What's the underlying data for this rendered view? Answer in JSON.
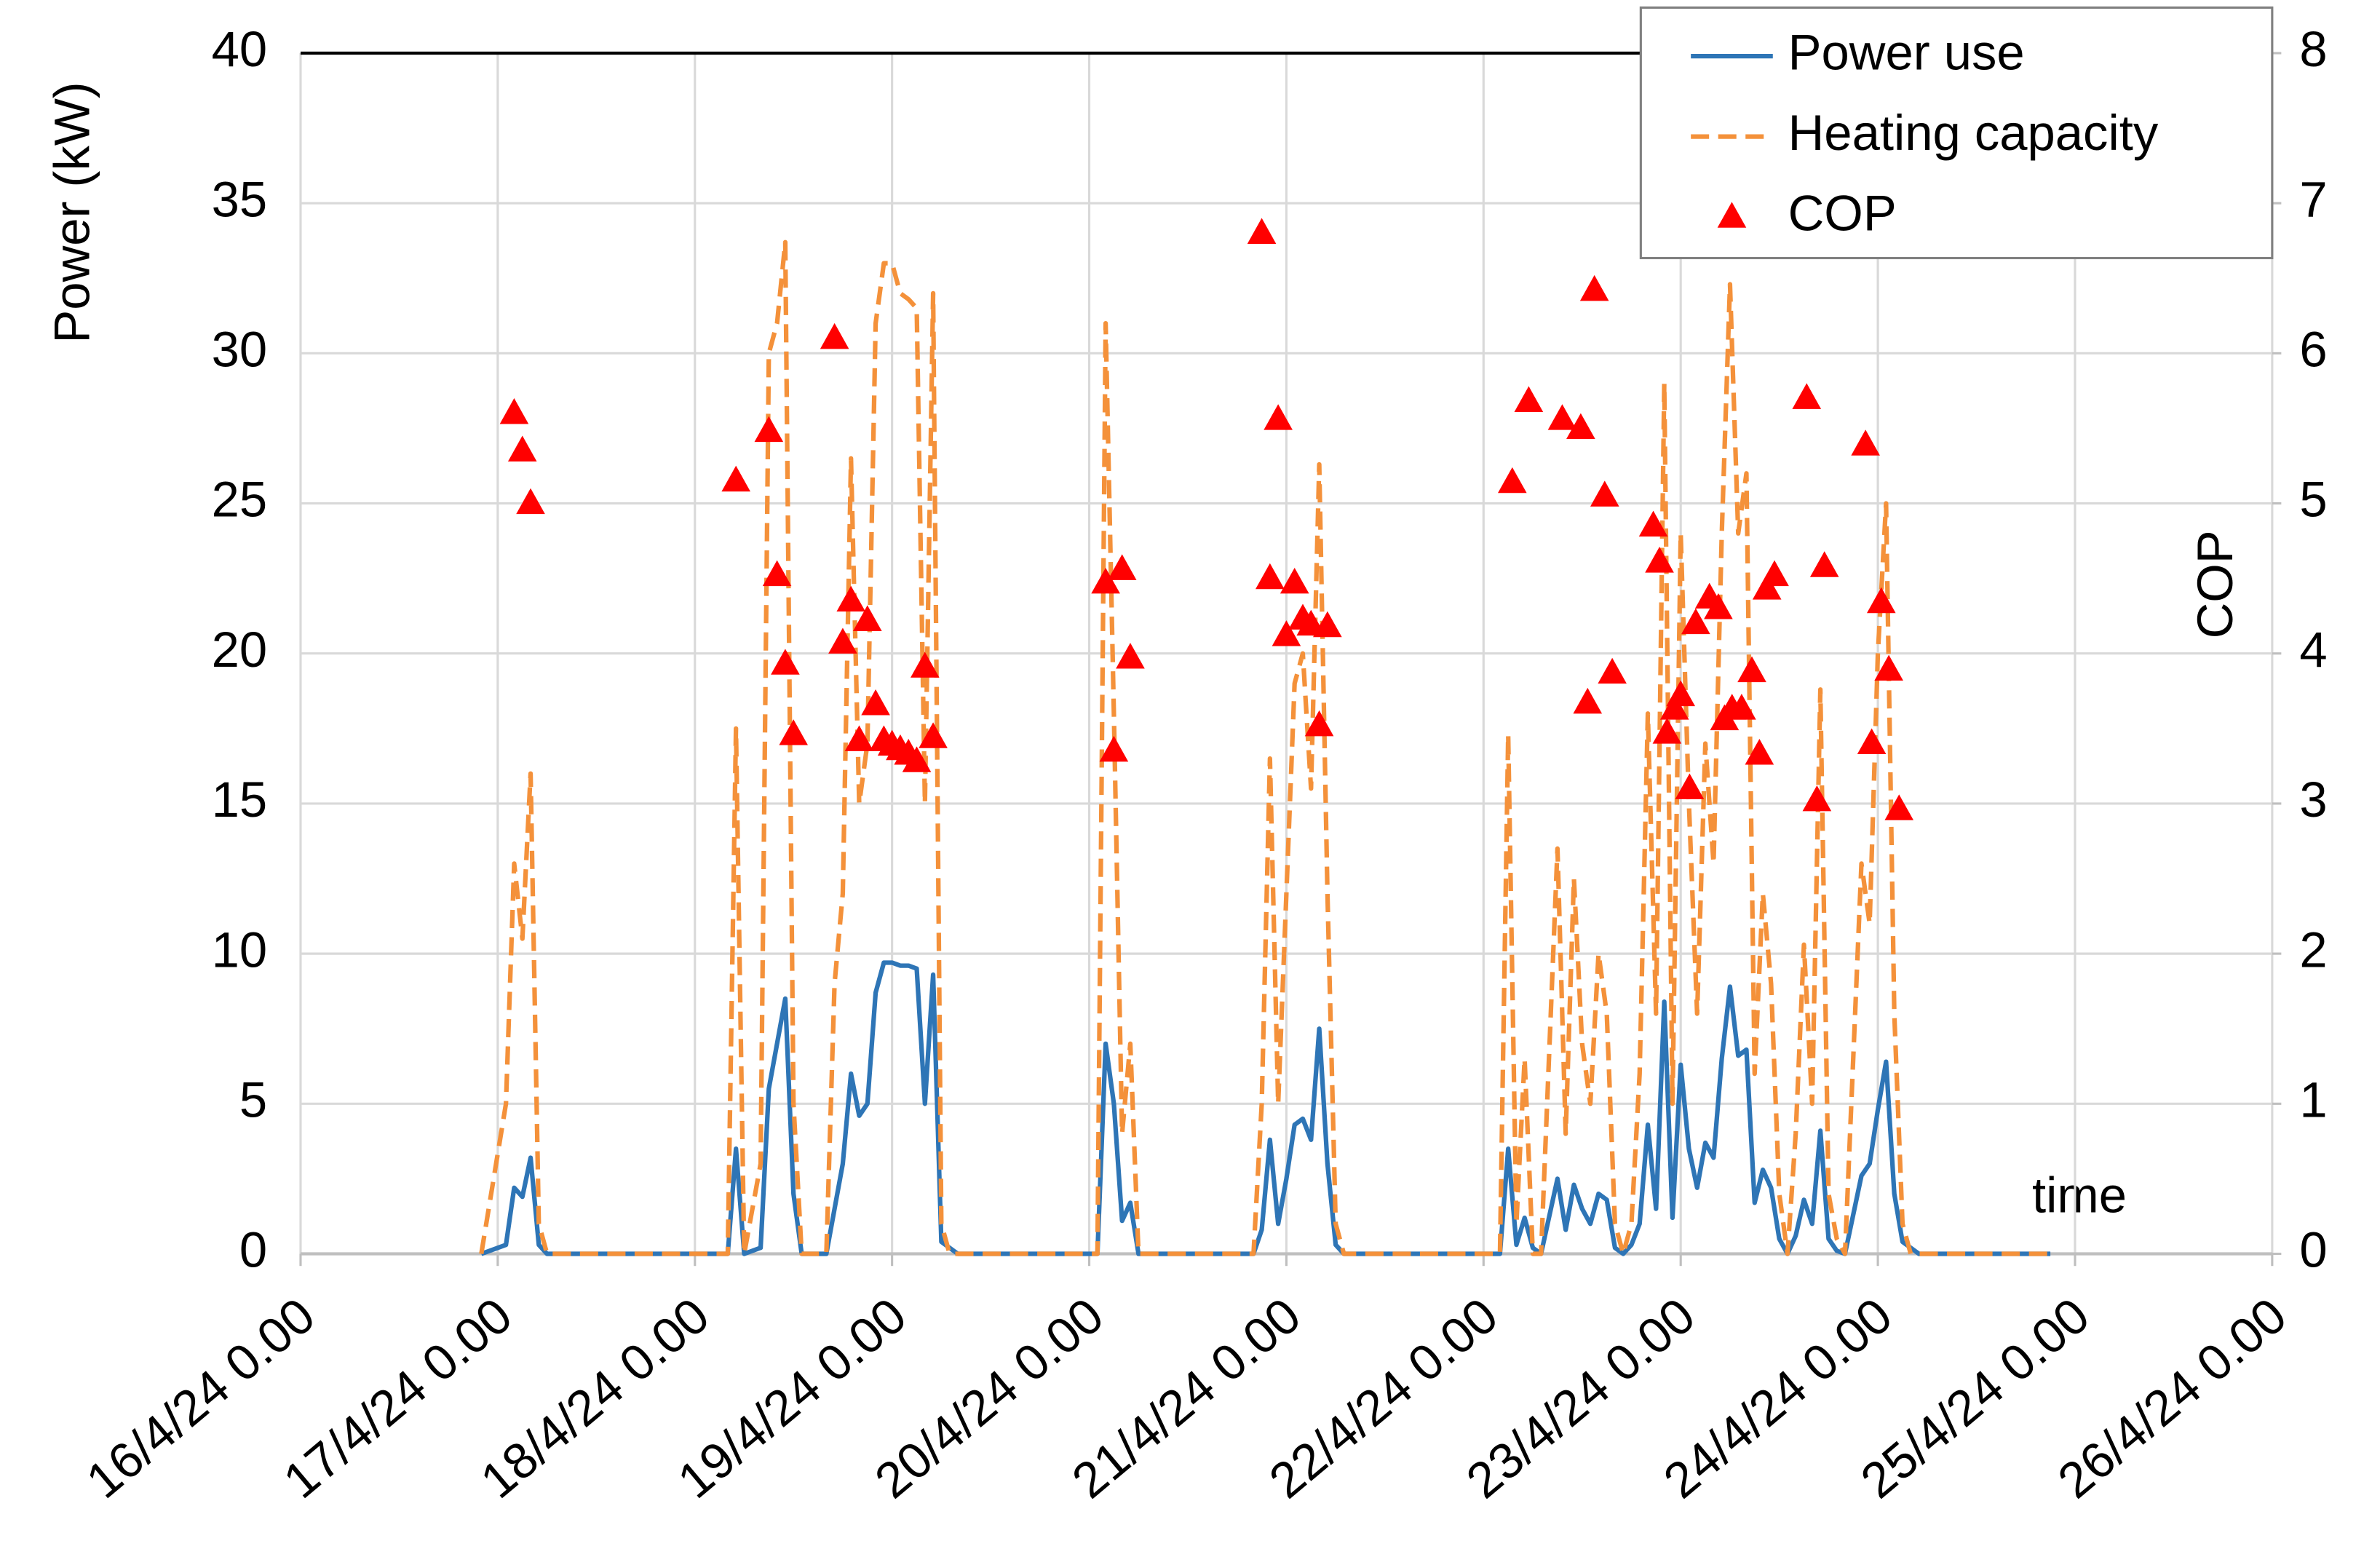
{
  "chart_data": {
    "type": "line",
    "y_label": "Power (kW)",
    "y2_label": "COP",
    "annotation": "time",
    "xlim": [
      "16/4/24 0.00",
      "26/4/24 0.00"
    ],
    "xticks": [
      "16/4/24 0.00",
      "17/4/24 0.00",
      "18/4/24 0.00",
      "19/4/24 0.00",
      "20/4/24 0.00",
      "21/4/24 0.00",
      "22/4/24 0.00",
      "23/4/24 0.00",
      "24/4/24 0.00",
      "25/4/24 0.00",
      "26/4/24 0.00"
    ],
    "ylim": [
      0,
      40
    ],
    "yticks": [
      0,
      5,
      10,
      15,
      20,
      25,
      30,
      35,
      40
    ],
    "y2lim": [
      0,
      8
    ],
    "y2ticks": [
      0,
      1,
      2,
      3,
      4,
      5,
      6,
      7,
      8
    ],
    "grid": true,
    "legend": "top-right",
    "x": [
      "16/4/24 22.00",
      "17/4/24 1.00",
      "17/4/24 2.00",
      "17/4/24 3.00",
      "17/4/24 4.00",
      "17/4/24 5.00",
      "17/4/24 6.00",
      "18/4/24 4.00",
      "18/4/24 5.00",
      "18/4/24 6.00",
      "18/4/24 8.00",
      "18/4/24 9.00",
      "18/4/24 10.00",
      "18/4/24 11.00",
      "18/4/24 12.00",
      "18/4/24 13.00",
      "18/4/24 16.00",
      "18/4/24 17.00",
      "18/4/24 18.00",
      "18/4/24 19.00",
      "18/4/24 20.00",
      "18/4/24 21.00",
      "18/4/24 22.00",
      "18/4/24 23.00",
      "19/4/24 0.00",
      "19/4/24 1.00",
      "19/4/24 2.00",
      "19/4/24 3.00",
      "19/4/24 4.00",
      "19/4/24 5.00",
      "19/4/24 6.00",
      "19/4/24 7.00",
      "19/4/24 8.00",
      "20/4/24 1.00",
      "20/4/24 2.00",
      "20/4/24 3.00",
      "20/4/24 4.00",
      "20/4/24 5.00",
      "20/4/24 6.00",
      "20/4/24 20.00",
      "20/4/24 21.00",
      "20/4/24 22.00",
      "20/4/24 23.00",
      "21/4/24 0.00",
      "21/4/24 1.00",
      "21/4/24 2.00",
      "21/4/24 3.00",
      "21/4/24 4.00",
      "21/4/24 5.00",
      "21/4/24 6.00",
      "21/4/24 7.00",
      "22/4/24 2.00",
      "22/4/24 3.00",
      "22/4/24 4.00",
      "22/4/24 5.00",
      "22/4/24 6.00",
      "22/4/24 7.00",
      "22/4/24 9.00",
      "22/4/24 10.00",
      "22/4/24 11.00",
      "22/4/24 12.00",
      "22/4/24 13.00",
      "22/4/24 14.00",
      "22/4/24 15.00",
      "22/4/24 16.00",
      "22/4/24 17.00",
      "22/4/24 18.00",
      "22/4/24 19.00",
      "22/4/24 20.00",
      "22/4/24 21.00",
      "22/4/24 22.00",
      "22/4/24 23.00",
      "23/4/24 0.00",
      "23/4/24 1.00",
      "23/4/24 2.00",
      "23/4/24 3.00",
      "23/4/24 4.00",
      "23/4/24 5.00",
      "23/4/24 6.00",
      "23/4/24 7.00",
      "23/4/24 8.00",
      "23/4/24 9.00",
      "23/4/24 10.00",
      "23/4/24 11.00",
      "23/4/24 12.00",
      "23/4/24 13.00",
      "23/4/24 14.00",
      "23/4/24 15.00",
      "23/4/24 16.00",
      "23/4/24 17.00",
      "23/4/24 18.00",
      "23/4/24 19.00",
      "23/4/24 20.00",
      "23/4/24 22.00",
      "23/4/24 23.00",
      "24/4/24 0.00",
      "24/4/24 1.00",
      "24/4/24 2.00",
      "24/4/24 3.00",
      "24/4/24 4.00",
      "24/4/24 5.00",
      "24/4/24 21.00"
    ],
    "series": [
      {
        "name": "Power use",
        "color": "#2e75b6",
        "linestyle": "solid",
        "values": [
          0,
          0.3,
          2.2,
          1.9,
          3.2,
          0.3,
          0,
          0,
          3.5,
          0,
          0.2,
          5.5,
          7,
          8.5,
          2,
          0,
          0,
          1.5,
          3,
          6,
          4.6,
          5,
          8.7,
          9.7,
          9.7,
          9.6,
          9.6,
          9.5,
          5,
          9.3,
          0.4,
          0.2,
          0,
          0,
          7,
          5,
          1.1,
          1.7,
          0,
          0,
          0.8,
          3.8,
          1,
          2.5,
          4.3,
          4.5,
          3.8,
          7.5,
          3,
          0.3,
          0,
          0,
          3.5,
          0.3,
          1.2,
          0.2,
          0,
          2.5,
          0.8,
          2.3,
          1.5,
          1,
          2,
          1.8,
          0.2,
          0,
          0.3,
          1,
          4.3,
          1.5,
          8.4,
          1.2,
          6.3,
          3.5,
          2.2,
          3.7,
          3.2,
          6.5,
          8.9,
          6.6,
          6.8,
          1.7,
          2.8,
          2.2,
          0.5,
          0,
          0.6,
          1.8,
          1,
          4.1,
          0.5,
          0.1,
          0,
          2.6,
          3,
          4.8,
          6.4,
          2,
          0.4,
          0.2,
          0,
          0
        ]
      },
      {
        "name": "Heating capacity",
        "color": "#f4913a",
        "linestyle": "dashed",
        "values": [
          0,
          5,
          13,
          10.5,
          16,
          1,
          0,
          0,
          17.5,
          0,
          3,
          30,
          31,
          33.7,
          5,
          0,
          0,
          9,
          12,
          26.5,
          15,
          17,
          31,
          33,
          33,
          32,
          31.8,
          31.5,
          15,
          32,
          1,
          0,
          0,
          0,
          31,
          18,
          4,
          7,
          0,
          0,
          5,
          16.5,
          5,
          12,
          19,
          20,
          15.5,
          26.3,
          12,
          1,
          0,
          0,
          17.3,
          1,
          6.5,
          0,
          0,
          13.5,
          4,
          12.5,
          7,
          5,
          10,
          8,
          1,
          0,
          1,
          6,
          18,
          8,
          29,
          5,
          24,
          15,
          8,
          17,
          13,
          24,
          32.3,
          24,
          26,
          6,
          12,
          9,
          2,
          0,
          4,
          10.3,
          5,
          18.8,
          2,
          0.5,
          0,
          13,
          11,
          20,
          25,
          8,
          1,
          0,
          0,
          0
        ]
      },
      {
        "name": "COP",
        "color": "#ff0000",
        "marker": "triangle",
        "axis": "y2",
        "x": [
          "17/4/24 2.00",
          "17/4/24 3.00",
          "17/4/24 4.00",
          "18/4/24 5.00",
          "18/4/24 9.00",
          "18/4/24 10.00",
          "18/4/24 11.00",
          "18/4/24 12.00",
          "18/4/24 17.00",
          "18/4/24 18.00",
          "18/4/24 19.00",
          "18/4/24 20.00",
          "18/4/24 21.00",
          "18/4/24 22.00",
          "18/4/24 23.00",
          "19/4/24 0.00",
          "19/4/24 1.00",
          "19/4/24 2.00",
          "19/4/24 3.00",
          "19/4/24 4.00",
          "19/4/24 5.00",
          "20/4/24 2.00",
          "20/4/24 3.00",
          "20/4/24 4.00",
          "20/4/24 5.00",
          "20/4/24 21.00",
          "20/4/24 22.00",
          "20/4/24 23.00",
          "21/4/24 0.00",
          "21/4/24 1.00",
          "21/4/24 2.00",
          "21/4/24 3.00",
          "21/4/24 4.00",
          "21/4/24 5.00",
          "22/4/24 3.30",
          "22/4/24 5.30",
          "22/4/24 9.35",
          "22/4/24 11.50",
          "22/4/24 12.40",
          "22/4/24 13.30",
          "22/4/24 14.45",
          "22/4/24 15.40",
          "22/4/24 20.40",
          "22/4/24 21.25",
          "22/4/24 22.20",
          "22/4/24 23.15",
          "23/4/24 0.00",
          "23/4/24 1.05",
          "23/4/24 1.50",
          "23/4/24 3.30",
          "23/4/24 4.35",
          "23/4/24 5.20",
          "23/4/24 6.15",
          "23/4/24 7.25",
          "23/4/24 8.40",
          "23/4/24 9.35",
          "23/4/24 10.30",
          "23/4/24 11.25",
          "23/4/24 15.20",
          "23/4/24 16.35",
          "23/4/24 17.30",
          "23/4/24 22.30",
          "23/4/24 23.15",
          "24/4/24 0.25",
          "24/4/24 1.20",
          "24/4/24 2.35"
        ],
        "values": [
          5.6,
          5.35,
          5.0,
          5.15,
          5.48,
          4.52,
          3.93,
          3.46,
          6.1,
          4.07,
          4.35,
          3.42,
          4.22,
          3.66,
          3.42,
          3.39,
          3.36,
          3.33,
          3.28,
          3.91,
          3.44,
          4.47,
          3.35,
          4.56,
          3.97,
          6.8,
          4.5,
          5.56,
          4.12,
          4.47,
          4.23,
          4.19,
          3.52,
          4.18,
          5.14,
          5.68,
          5.56,
          5.5,
          3.67,
          6.42,
          5.05,
          3.87,
          4.85,
          4.61,
          3.47,
          3.63,
          3.72,
          3.1,
          4.2,
          4.37,
          4.3,
          3.56,
          3.63,
          3.63,
          3.88,
          3.33,
          4.43,
          4.52,
          5.7,
          3.02,
          4.58,
          5.39,
          3.4,
          4.34,
          3.89,
          2.96
        ]
      }
    ]
  }
}
